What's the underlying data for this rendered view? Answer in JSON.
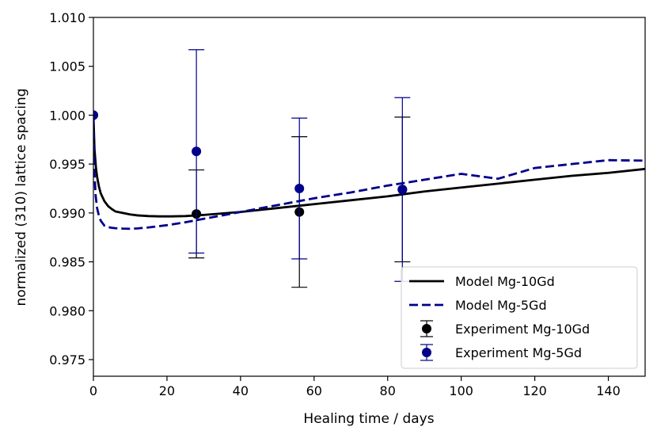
{
  "chart_data": {
    "type": "line",
    "title": "",
    "xlabel": "Healing time / days",
    "ylabel": "normalized (310) lattice spacing",
    "xlim": [
      0,
      150
    ],
    "ylim": [
      0.9733,
      1.01
    ],
    "xticks": [
      0,
      20,
      40,
      60,
      80,
      100,
      120,
      140
    ],
    "yticks": [
      0.975,
      0.98,
      0.985,
      0.99,
      0.995,
      1.0,
      1.005,
      1.01
    ],
    "xtick_labels": [
      "0",
      "20",
      "40",
      "60",
      "80",
      "100",
      "120",
      "140"
    ],
    "ytick_labels": [
      "0.975",
      "0.980",
      "0.985",
      "0.990",
      "0.995",
      "1.000",
      "1.005",
      "1.010"
    ],
    "legend_position": "lower-right",
    "series": [
      {
        "name": "Model Mg-10Gd",
        "kind": "line",
        "style": "solid",
        "color": "#000000",
        "x": [
          0,
          0.3,
          0.7,
          1,
          1.5,
          2,
          3,
          4,
          5,
          6,
          8,
          10,
          12,
          15,
          18,
          21,
          25,
          30,
          35,
          40,
          50,
          60,
          70,
          80,
          90,
          100,
          110,
          120,
          130,
          140,
          150
        ],
        "y": [
          1.0,
          0.9965,
          0.9946,
          0.9937,
          0.9927,
          0.992,
          0.9912,
          0.9907,
          0.9904,
          0.99015,
          0.99,
          0.98985,
          0.98975,
          0.98968,
          0.98965,
          0.98965,
          0.98968,
          0.9898,
          0.98995,
          0.9901,
          0.9905,
          0.9909,
          0.9913,
          0.9917,
          0.9922,
          0.9926,
          0.993,
          0.9934,
          0.9938,
          0.9941,
          0.9945
        ]
      },
      {
        "name": "Model Mg-5Gd",
        "kind": "line",
        "style": "dashed",
        "color": "#00008b",
        "x": [
          0,
          0.3,
          0.6,
          1,
          1.5,
          2,
          3,
          4,
          5,
          6,
          8,
          10,
          12,
          15,
          20,
          25,
          30,
          35,
          40,
          50,
          60,
          70,
          80,
          90,
          100,
          110,
          120,
          130,
          140,
          150
        ],
        "y": [
          0.9997,
          0.994,
          0.9918,
          0.9905,
          0.9897,
          0.9892,
          0.9887,
          0.98855,
          0.98848,
          0.98844,
          0.9884,
          0.98838,
          0.98842,
          0.98852,
          0.98875,
          0.98905,
          0.9894,
          0.98975,
          0.9901,
          0.9908,
          0.9915,
          0.9921,
          0.9928,
          0.9934,
          0.994,
          0.9935,
          0.9946,
          0.995,
          0.9954,
          0.99535
        ]
      },
      {
        "name": "Experiment Mg-10Gd",
        "kind": "errorbar",
        "color": "#000000",
        "x": [
          0,
          28,
          56,
          84
        ],
        "y": [
          1.0,
          0.9899,
          0.9901,
          0.9924
        ],
        "yerr": [
          0,
          0.0045,
          0.0077,
          0.0074
        ]
      },
      {
        "name": "Experiment Mg-5Gd",
        "kind": "errorbar",
        "color": "#00008b",
        "x": [
          0,
          28,
          56,
          84
        ],
        "y": [
          1.0,
          0.9963,
          0.9925,
          0.9924
        ],
        "yerr": [
          0,
          0.0104,
          0.0072,
          0.0094
        ]
      }
    ]
  }
}
